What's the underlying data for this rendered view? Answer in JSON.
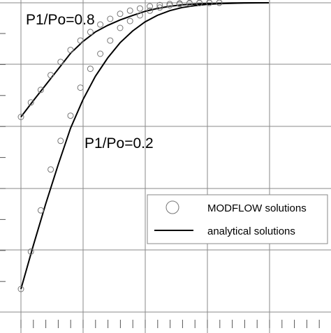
{
  "chart_data": {
    "type": "line",
    "title": "",
    "xlabel": "",
    "ylabel": "",
    "xlim": [
      0,
      5
    ],
    "ylim": [
      0,
      1
    ],
    "grid": true,
    "legend_position": "bottom-right",
    "legend": [
      {
        "label": "MODFLOW solutions",
        "kind": "marker"
      },
      {
        "label": "analytical solutions",
        "kind": "line"
      }
    ],
    "annotations": [
      {
        "id": "p08",
        "text": "P1/Po=0.8"
      },
      {
        "id": "p02",
        "text": "P1/Po=0.2"
      }
    ],
    "series": [
      {
        "name": "P1/Po=0.8",
        "analytical": {
          "x": [
            0,
            0.25,
            0.5,
            0.75,
            1,
            1.25,
            1.5,
            1.75,
            2,
            2.25,
            2.5,
            2.75,
            3,
            3.25,
            3.5,
            3.75,
            4,
            4.25,
            4.5,
            4.75,
            5
          ],
          "y": [
            0.6333,
            0.6858,
            0.7364,
            0.7869,
            0.8376,
            0.8758,
            0.9062,
            0.9276,
            0.9449,
            0.9591,
            0.9724,
            0.9818,
            0.9888,
            0.9934,
            0.9958,
            0.9975,
            0.9986,
            0.9993,
            0.9997,
            0.9999,
            1.0
          ]
        },
        "modflow": {
          "x": [
            0,
            0.2,
            0.4,
            0.6,
            0.8,
            1.0,
            1.2,
            1.4,
            1.6,
            1.8,
            2.0,
            2.2,
            2.4,
            2.6,
            2.8,
            3.0,
            3.2,
            3.4,
            3.6,
            3.8,
            4.0
          ],
          "y": [
            0.6333,
            0.6798,
            0.7202,
            0.7677,
            0.8101,
            0.8485,
            0.8788,
            0.9061,
            0.9303,
            0.9485,
            0.9646,
            0.9747,
            0.9818,
            0.9889,
            0.9929,
            0.996,
            0.998,
            0.999,
            0.9995,
            0.9998,
            1.0
          ]
        }
      },
      {
        "name": "P1/Po=0.2",
        "analytical": {
          "x": [
            0,
            0.25,
            0.5,
            0.75,
            1,
            1.25,
            1.5,
            1.75,
            2,
            2.25,
            2.5,
            2.75,
            3,
            3.25,
            3.5,
            3.75,
            4,
            4.25,
            4.5,
            4.75,
            5
          ],
          "y": [
            0.0808,
            0.2212,
            0.3545,
            0.4798,
            0.597,
            0.6889,
            0.7636,
            0.8232,
            0.8717,
            0.9091,
            0.9384,
            0.9596,
            0.9747,
            0.9848,
            0.9909,
            0.9949,
            0.997,
            0.9985,
            0.9993,
            0.9998,
            1.0
          ]
        },
        "modflow": {
          "x": [
            0,
            0.2,
            0.4,
            0.6,
            0.8,
            1.0,
            1.2,
            1.4,
            1.6,
            1.8,
            2.0,
            2.2,
            2.4,
            2.6,
            2.8,
            3.0,
            3.2,
            3.4,
            3.6,
            3.8,
            4.0
          ],
          "y": [
            0.0808,
            0.201,
            0.3333,
            0.4646,
            0.5566,
            0.6374,
            0.7273,
            0.7879,
            0.8364,
            0.8788,
            0.9192,
            0.9414,
            0.9596,
            0.9747,
            0.9848,
            0.9919,
            0.996,
            0.998,
            0.999,
            0.9997,
            1.0
          ]
        }
      }
    ]
  }
}
